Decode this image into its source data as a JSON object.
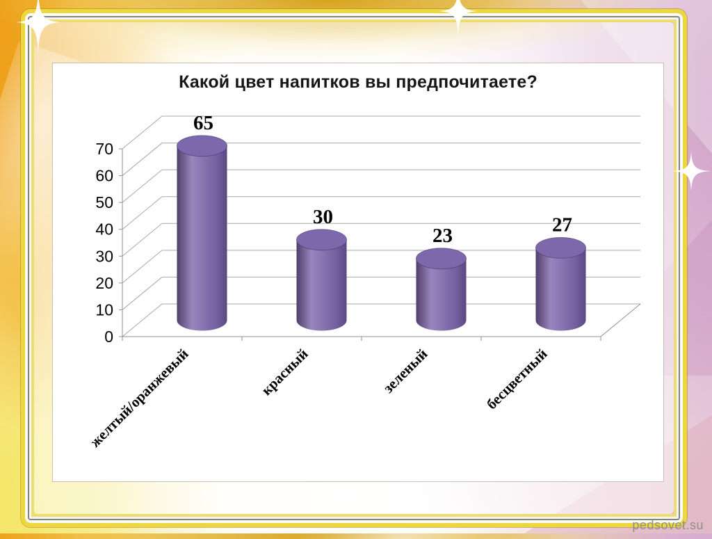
{
  "slide": {
    "watermark": "pedsovet.su"
  },
  "decor": {
    "sparkle_icon": "four-point-star",
    "sparkle_color": "#ffffff",
    "frame_gold": "#ecd73e",
    "left_band_color": "#ec9811",
    "right_band_color": "#cfa0c6"
  },
  "chart_data": {
    "type": "bar",
    "subtype": "3d-cylinder",
    "title": "Какой цвет напитков вы предпочитаете?",
    "categories": [
      "желтый/оранжевый",
      "красный",
      "зеленый",
      "бесцветный"
    ],
    "values": [
      65,
      30,
      23,
      27
    ],
    "data_labels": [
      "65",
      "30",
      "23",
      "27"
    ],
    "xlabel": "",
    "ylabel": "",
    "y_ticks": [
      0,
      10,
      20,
      30,
      40,
      50,
      60,
      70
    ],
    "ylim": [
      0,
      70
    ],
    "grid": true,
    "legend": "none",
    "bar_color": "#7e68ac",
    "bar_color_dark": "#4e3d68",
    "bar_color_light": "#9886bd",
    "gridline_color": "#a8a8a8",
    "axis_color": "#8f8f8f",
    "label_color": "#000000"
  }
}
